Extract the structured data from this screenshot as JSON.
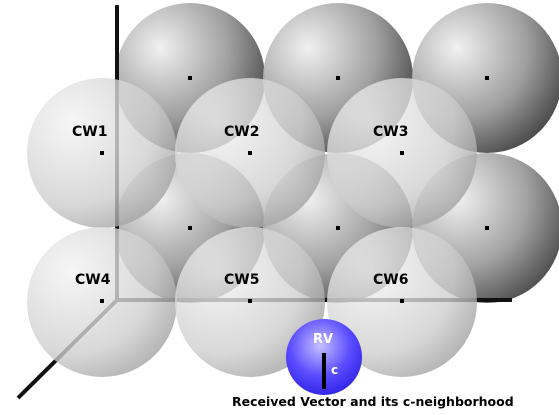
{
  "codewords": [
    {
      "label": "CW1"
    },
    {
      "label": "CW2"
    },
    {
      "label": "CW3"
    },
    {
      "label": "CW4"
    },
    {
      "label": "CW5"
    },
    {
      "label": "CW6"
    }
  ],
  "received_vector": {
    "label": "RV",
    "radius_label": "c"
  },
  "caption": "Received Vector and its c-neighborhood",
  "colors": {
    "sphere_light": "#f2f2f2",
    "sphere_dark": "#3a3a3a",
    "axis": "#111111",
    "rv_fill": "#3c2bff",
    "rv_highlight": "#b9b3ff"
  }
}
